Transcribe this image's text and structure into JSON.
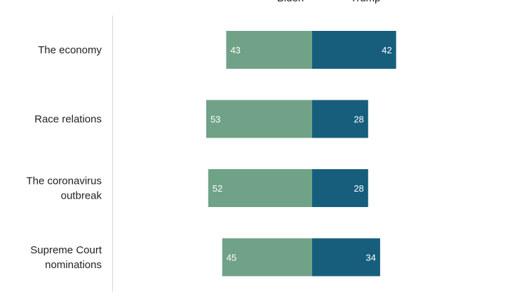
{
  "chart_data": {
    "type": "bar",
    "orientation": "horizontal-diverging",
    "categories": [
      [
        "The economy"
      ],
      [
        "Race relations"
      ],
      [
        "The coronavirus",
        "outbreak"
      ],
      [
        "Supreme Court",
        "nominations"
      ]
    ],
    "series": [
      {
        "name": "Biden",
        "values": [
          43,
          53,
          52,
          45
        ],
        "color": "#70a288",
        "direction": "left"
      },
      {
        "name": "Trump",
        "values": [
          42,
          28,
          28,
          34
        ],
        "color": "#175e7c",
        "direction": "right"
      }
    ],
    "gridlines": false,
    "legend_position": "top"
  }
}
